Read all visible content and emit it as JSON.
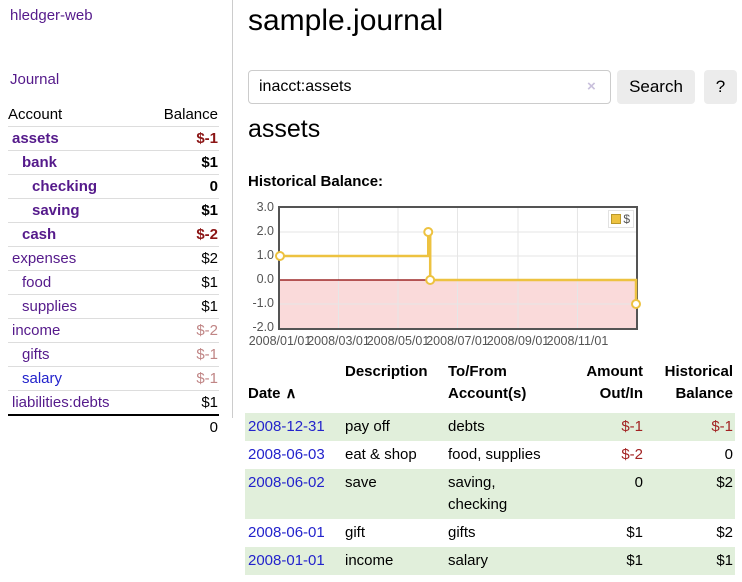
{
  "colors": {
    "purple": "#551a8b",
    "link_blue": "#2323cc",
    "neg_strong": "#8b1515",
    "neg": "#a22222",
    "neg_pale": "#c08585",
    "stripe_green": "#e1efdb",
    "gold": "#edc240",
    "pink_fill": "#fadada",
    "zero_line": "#8b0000",
    "grid": "#e6e6e6",
    "axis_text": "#545454"
  },
  "sidebar": {
    "brand": "hledger-web",
    "journal_link": "Journal",
    "account_header": "Account",
    "balance_header": "Balance",
    "accounts": [
      {
        "name": "assets",
        "balance": "$-1",
        "level": 0,
        "bold": true,
        "balance_class": "neg-strong"
      },
      {
        "name": "bank",
        "balance": "$1",
        "level": 1,
        "bold": true,
        "balance_class": ""
      },
      {
        "name": "checking",
        "balance": "0",
        "level": 2,
        "bold": true,
        "balance_class": ""
      },
      {
        "name": "saving",
        "balance": "$1",
        "level": 2,
        "bold": true,
        "balance_class": ""
      },
      {
        "name": "cash",
        "balance": "$-2",
        "level": 1,
        "bold": true,
        "balance_class": "neg-strong"
      },
      {
        "name": "expenses",
        "balance": "$2",
        "level": 0,
        "bold": false,
        "balance_class": ""
      },
      {
        "name": "food",
        "balance": "$1",
        "level": 1,
        "bold": false,
        "balance_class": ""
      },
      {
        "name": "supplies",
        "balance": "$1",
        "level": 1,
        "bold": false,
        "balance_class": ""
      },
      {
        "name": "income",
        "balance": "$-2",
        "level": 0,
        "bold": false,
        "balance_class": "neg-pale"
      },
      {
        "name": "gifts",
        "balance": "$-1",
        "level": 1,
        "bold": false,
        "balance_class": "neg-pale"
      },
      {
        "name": "salary",
        "balance": "$-1",
        "level": 1,
        "bold": false,
        "balance_class": "neg-pale",
        "link_color": "blue"
      },
      {
        "name": "liabilities:debts",
        "balance": "$1",
        "level": 0,
        "bold": false,
        "balance_class": ""
      }
    ],
    "total": "0"
  },
  "main": {
    "title": "sample.journal",
    "search": {
      "value": "inacct:assets",
      "clear_icon": "×",
      "search_button": "Search",
      "help_button": "?"
    },
    "account_title": "assets",
    "chart_label": "Historical Balance:"
  },
  "chart_data": {
    "type": "line",
    "title": "Historical Balance",
    "step": true,
    "legend": [
      {
        "label": "$",
        "color": "#edc240"
      }
    ],
    "points": [
      {
        "date": "2008-01-01",
        "value": 1
      },
      {
        "date": "2008-06-01",
        "value": 2
      },
      {
        "date": "2008-06-03",
        "value": 0
      },
      {
        "date": "2008-12-31",
        "value": -1
      }
    ],
    "x_ticks": [
      "2008/01/01",
      "2008/03/01",
      "2008/05/01",
      "2008/07/01",
      "2008/09/01",
      "2008/11/01"
    ],
    "y_ticks": [
      "3.0",
      "2.0",
      "1.0",
      "0.0",
      "-1.0",
      "-2.0"
    ],
    "x_range": [
      "2008-01-01",
      "2008-12-31"
    ],
    "ylim": [
      -2,
      3
    ],
    "grid": true,
    "negative_region_shaded": true,
    "legend_position": "top-right"
  },
  "register": {
    "headers": {
      "date": "Date",
      "sort_icon": "∧",
      "description": "Description",
      "accounts": "To/From\nAccount(s)",
      "amount": "Amount\nOut/In",
      "balance": "Historical\nBalance"
    },
    "rows": [
      {
        "date": "2008-12-31",
        "description": "pay off",
        "accounts": "debts",
        "amount": "$-1",
        "balance": "$-1",
        "amount_neg": true,
        "balance_neg": true,
        "striped": true
      },
      {
        "date": "2008-06-03",
        "description": "eat & shop",
        "accounts": "food, supplies",
        "amount": "$-2",
        "balance": "0",
        "amount_neg": true,
        "balance_neg": false,
        "striped": false
      },
      {
        "date": "2008-06-02",
        "description": "save",
        "accounts": "saving,\nchecking",
        "amount": "0",
        "balance": "$2",
        "amount_neg": false,
        "balance_neg": false,
        "striped": true
      },
      {
        "date": "2008-06-01",
        "description": "gift",
        "accounts": "gifts",
        "amount": "$1",
        "balance": "$2",
        "amount_neg": false,
        "balance_neg": false,
        "striped": false
      },
      {
        "date": "2008-01-01",
        "description": "income",
        "accounts": "salary",
        "amount": "$1",
        "balance": "$1",
        "amount_neg": false,
        "balance_neg": false,
        "striped": true
      }
    ]
  }
}
